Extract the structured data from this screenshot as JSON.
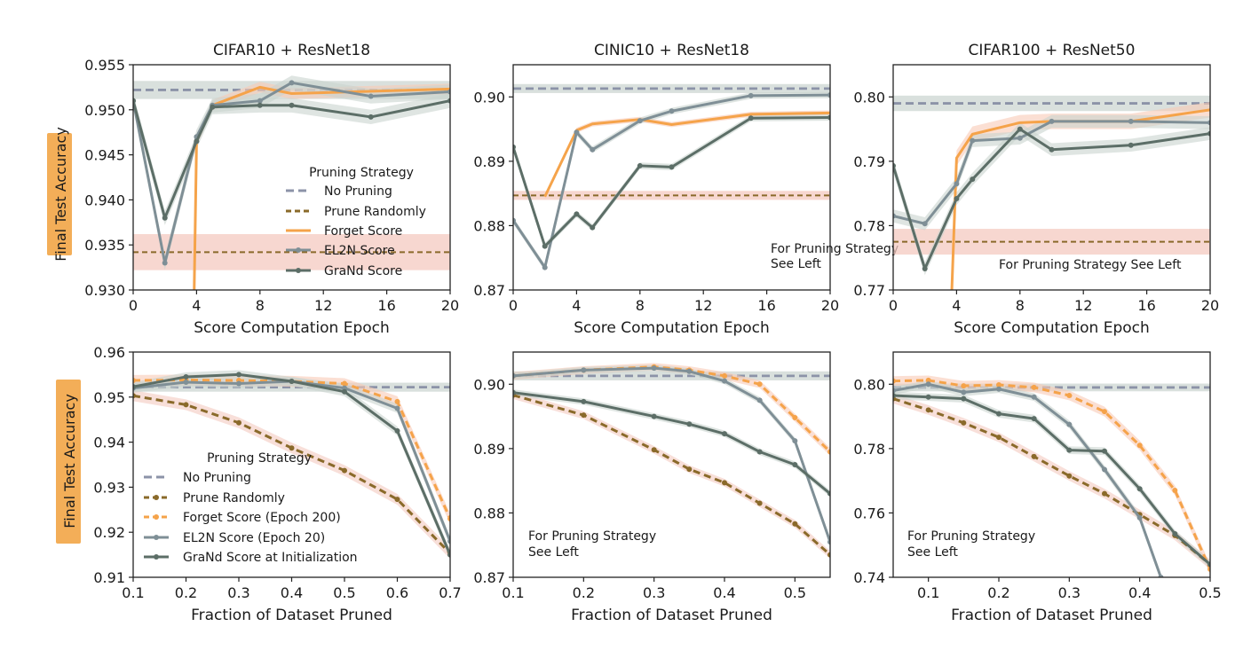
{
  "colors": {
    "no_pruning": "#8c93a8",
    "prune_randomly_line": "#8a6a2a",
    "prune_randomly_band": "#f4c9c0",
    "forget": "#f5a34a",
    "el2n": "#7f8f96",
    "grand": "#5c6e67",
    "band_gray": "#c9d3cf",
    "ylabel_bg": "#f3ae58"
  },
  "ylabel_text": "Final Test Accuracy",
  "legend_top": {
    "title": "Pruning Strategy",
    "entries": [
      "No Pruning",
      "Prune Randomly",
      "Forget Score",
      "EL2N Score",
      "GraNd Score"
    ]
  },
  "legend_bottom": {
    "title": "Pruning Strategy",
    "entries": [
      "No Pruning",
      "Prune Randomly",
      "Forget Score (Epoch 200)",
      "EL2N Score (Epoch 20)",
      "GraNd Score at Initialization"
    ]
  },
  "chart_data": [
    {
      "type": "line",
      "title": "CIFAR10 + ResNet18",
      "xlabel": "Score Computation Epoch",
      "ylabel": "Final Test Accuracy",
      "xlim": [
        0,
        20
      ],
      "ylim": [
        0.93,
        0.955
      ],
      "xticks": [
        "0",
        "4",
        "8",
        "12",
        "16",
        "20"
      ],
      "yticks": [
        "0.930",
        "0.935",
        "0.940",
        "0.945",
        "0.950",
        "0.955"
      ],
      "hlines": [
        {
          "name": "No Pruning",
          "y": 0.9522,
          "band": [
            0.9512,
            0.9532
          ]
        },
        {
          "name": "Prune Randomly",
          "y": 0.9342,
          "band": [
            0.9322,
            0.9362
          ]
        }
      ],
      "series": [
        {
          "name": "Forget Score",
          "x": [
            3.85,
            4,
            5,
            8,
            10,
            20
          ],
          "y": [
            0.93,
            0.9465,
            0.9505,
            0.9525,
            0.9518,
            0.9523
          ],
          "band": 0.0006
        },
        {
          "name": "EL2N Score",
          "x": [
            0,
            2,
            4,
            5,
            8,
            10,
            15,
            20
          ],
          "y": [
            0.951,
            0.933,
            0.947,
            0.9505,
            0.951,
            0.953,
            0.9515,
            0.952
          ],
          "band": 0.0008
        },
        {
          "name": "GraNd Score",
          "x": [
            0,
            2,
            4,
            5,
            8,
            10,
            15,
            20
          ],
          "y": [
            0.951,
            0.938,
            0.9465,
            0.9503,
            0.9505,
            0.9505,
            0.9492,
            0.951
          ],
          "band": 0.0008
        }
      ]
    },
    {
      "type": "line",
      "title": "CINIC10 + ResNet18",
      "xlabel": "Score Computation Epoch",
      "xlim": [
        0,
        20
      ],
      "ylim": [
        0.87,
        0.905
      ],
      "xticks": [
        "0",
        "4",
        "8",
        "12",
        "16",
        "20"
      ],
      "yticks": [
        "0.87",
        "0.88",
        "0.89",
        "0.90"
      ],
      "annotation": [
        "For Pruning Strategy",
        "See Left"
      ],
      "hlines": [
        {
          "name": "No Pruning",
          "y": 0.9013,
          "band": [
            0.9006,
            0.902
          ]
        },
        {
          "name": "Prune Randomly",
          "y": 0.8847,
          "band": [
            0.884,
            0.8854
          ]
        }
      ],
      "series": [
        {
          "name": "Forget Score",
          "x": [
            2,
            4,
            5,
            8,
            10,
            15,
            20
          ],
          "y": [
            0.8845,
            0.8948,
            0.8958,
            0.8965,
            0.8957,
            0.8973,
            0.8975
          ],
          "band": 0.0004
        },
        {
          "name": "EL2N Score",
          "x": [
            0,
            2,
            4,
            5,
            8,
            10,
            15,
            20
          ],
          "y": [
            0.8808,
            0.8735,
            0.8945,
            0.8918,
            0.8963,
            0.8978,
            0.9002,
            0.9003
          ],
          "band": 0.0005
        },
        {
          "name": "GraNd Score",
          "x": [
            0,
            2,
            4,
            5,
            8,
            10,
            15,
            20
          ],
          "y": [
            0.8922,
            0.8768,
            0.8818,
            0.8797,
            0.8893,
            0.8891,
            0.8967,
            0.8968
          ],
          "band": 0.0005
        }
      ]
    },
    {
      "type": "line",
      "title": "CIFAR100 + ResNet50",
      "xlabel": "Score Computation Epoch",
      "xlim": [
        0,
        20
      ],
      "ylim": [
        0.77,
        0.805
      ],
      "xticks": [
        "0",
        "4",
        "8",
        "12",
        "16",
        "20"
      ],
      "yticks": [
        "0.77",
        "0.78",
        "0.79",
        "0.80"
      ],
      "annotation": [
        "For Pruning Strategy See Left"
      ],
      "hlines": [
        {
          "name": "No Pruning",
          "y": 0.799,
          "band": [
            0.7978,
            0.8002
          ]
        },
        {
          "name": "Prune Randomly",
          "y": 0.7775,
          "band": [
            0.7755,
            0.7795
          ]
        }
      ],
      "series": [
        {
          "name": "Forget Score",
          "x": [
            3.7,
            4,
            5,
            8,
            10,
            15,
            20
          ],
          "y": [
            0.77,
            0.7905,
            0.7942,
            0.796,
            0.7962,
            0.7962,
            0.798
          ],
          "band": 0.0012
        },
        {
          "name": "EL2N Score",
          "x": [
            0,
            2,
            4,
            5,
            8,
            10,
            15,
            20
          ],
          "y": [
            0.7815,
            0.7803,
            0.7865,
            0.7932,
            0.7936,
            0.7962,
            0.7962,
            0.796
          ],
          "band": 0.001
        },
        {
          "name": "GraNd Score",
          "x": [
            0,
            2,
            4,
            5,
            8,
            10,
            15,
            20
          ],
          "y": [
            0.7893,
            0.7733,
            0.7842,
            0.7872,
            0.795,
            0.7918,
            0.7925,
            0.7943
          ],
          "band": 0.001
        }
      ]
    },
    {
      "type": "line",
      "title": "",
      "xlabel": "Fraction of Dataset Pruned",
      "ylabel": "Final Test Accuracy",
      "xlim": [
        0.1,
        0.7
      ],
      "ylim": [
        0.91,
        0.96
      ],
      "xticks": [
        "0.1",
        "0.2",
        "0.3",
        "0.4",
        "0.5",
        "0.6",
        "0.7"
      ],
      "yticks": [
        "0.91",
        "0.92",
        "0.93",
        "0.94",
        "0.95",
        "0.96"
      ],
      "hlines": [
        {
          "name": "No Pruning",
          "y": 0.9522,
          "band": [
            0.9512,
            0.9532
          ]
        }
      ],
      "series": [
        {
          "name": "Prune Randomly",
          "x": [
            0.1,
            0.2,
            0.3,
            0.4,
            0.5,
            0.6,
            0.7
          ],
          "y": [
            0.9503,
            0.9483,
            0.9443,
            0.9387,
            0.9337,
            0.9273,
            0.9153
          ],
          "band": 0.0012,
          "dashed": true
        },
        {
          "name": "Forget Score (Epoch 200)",
          "x": [
            0.1,
            0.2,
            0.3,
            0.4,
            0.5,
            0.6,
            0.7
          ],
          "y": [
            0.9537,
            0.9538,
            0.9537,
            0.9535,
            0.953,
            0.949,
            0.923
          ],
          "band": 0.0012,
          "dashed": true
        },
        {
          "name": "EL2N Score (Epoch 20)",
          "x": [
            0.1,
            0.2,
            0.3,
            0.4,
            0.5,
            0.6,
            0.7
          ],
          "y": [
            0.952,
            0.9533,
            0.953,
            0.9535,
            0.952,
            0.9475,
            0.918
          ],
          "band": 0.001
        },
        {
          "name": "GraNd Score at Initialization",
          "x": [
            0.1,
            0.2,
            0.3,
            0.4,
            0.5,
            0.6,
            0.7
          ],
          "y": [
            0.9523,
            0.9545,
            0.955,
            0.9535,
            0.9512,
            0.9425,
            0.915
          ],
          "band": 0.001
        }
      ]
    },
    {
      "type": "line",
      "title": "",
      "xlabel": "Fraction of Dataset Pruned",
      "xlim": [
        0.1,
        0.55
      ],
      "ylim": [
        0.87,
        0.905
      ],
      "xticks": [
        "0.1",
        "0.2",
        "0.3",
        "0.4",
        "0.5"
      ],
      "yticks": [
        "0.87",
        "0.88",
        "0.89",
        "0.90"
      ],
      "annotation": [
        "For Pruning Strategy",
        "See Left"
      ],
      "hlines": [
        {
          "name": "No Pruning",
          "y": 0.9013,
          "band": [
            0.9006,
            0.902
          ]
        }
      ],
      "series": [
        {
          "name": "Prune Randomly",
          "x": [
            0.1,
            0.2,
            0.3,
            0.35,
            0.4,
            0.45,
            0.5,
            0.55
          ],
          "y": [
            0.8983,
            0.8952,
            0.8898,
            0.8868,
            0.8847,
            0.8815,
            0.8783,
            0.8735
          ],
          "band": 0.0006,
          "dashed": true
        },
        {
          "name": "Forget Score (Epoch 200)",
          "x": [
            0.1,
            0.2,
            0.3,
            0.35,
            0.4,
            0.45,
            0.5,
            0.55
          ],
          "y": [
            0.9013,
            0.9022,
            0.9027,
            0.9022,
            0.9013,
            0.9,
            0.8948,
            0.8895
          ],
          "band": 0.0006,
          "dashed": true
        },
        {
          "name": "EL2N Score (Epoch 20)",
          "x": [
            0.1,
            0.2,
            0.3,
            0.35,
            0.4,
            0.45,
            0.5,
            0.55
          ],
          "y": [
            0.9013,
            0.9022,
            0.9025,
            0.902,
            0.9005,
            0.8975,
            0.8912,
            0.8755
          ],
          "band": 0.0005
        },
        {
          "name": "GraNd Score at Initialization",
          "x": [
            0.1,
            0.2,
            0.3,
            0.35,
            0.4,
            0.45,
            0.5,
            0.55
          ],
          "y": [
            0.8987,
            0.8973,
            0.895,
            0.8938,
            0.8923,
            0.8895,
            0.8875,
            0.883
          ],
          "band": 0.0005
        }
      ]
    },
    {
      "type": "line",
      "title": "",
      "xlabel": "Fraction of Dataset Pruned",
      "xlim": [
        0.05,
        0.5
      ],
      "ylim": [
        0.74,
        0.81
      ],
      "xticks": [
        "0.1",
        "0.2",
        "0.3",
        "0.4",
        "0.5"
      ],
      "yticks": [
        "0.74",
        "0.76",
        "0.78",
        "0.80"
      ],
      "annotation": [
        "For Pruning Strategy",
        "See Left"
      ],
      "hlines": [
        {
          "name": "No Pruning",
          "y": 0.799,
          "band": [
            0.7978,
            0.8002
          ]
        }
      ],
      "series": [
        {
          "name": "Prune Randomly",
          "x": [
            0.05,
            0.1,
            0.15,
            0.2,
            0.25,
            0.3,
            0.35,
            0.4,
            0.45,
            0.5
          ],
          "y": [
            0.7955,
            0.792,
            0.788,
            0.7835,
            0.7775,
            0.7715,
            0.766,
            0.7595,
            0.753,
            0.744
          ],
          "band": 0.0015,
          "dashed": true
        },
        {
          "name": "Forget Score (Epoch 200)",
          "x": [
            0.05,
            0.1,
            0.15,
            0.2,
            0.25,
            0.3,
            0.35,
            0.4,
            0.45,
            0.5
          ],
          "y": [
            0.801,
            0.8012,
            0.7995,
            0.7998,
            0.799,
            0.7965,
            0.7915,
            0.781,
            0.767,
            0.7425
          ],
          "band": 0.0015,
          "dashed": true
        },
        {
          "name": "EL2N Score (Epoch 20)",
          "x": [
            0.05,
            0.1,
            0.15,
            0.2,
            0.25,
            0.3,
            0.35,
            0.4,
            0.43
          ],
          "y": [
            0.798,
            0.8,
            0.7975,
            0.7985,
            0.796,
            0.7875,
            0.7735,
            0.7585,
            0.74
          ],
          "band": 0.0012
        },
        {
          "name": "GraNd Score at Initialization",
          "x": [
            0.05,
            0.1,
            0.15,
            0.2,
            0.25,
            0.3,
            0.35,
            0.4,
            0.45,
            0.5
          ],
          "y": [
            0.7965,
            0.796,
            0.7955,
            0.7908,
            0.7893,
            0.7795,
            0.7792,
            0.7675,
            0.7535,
            0.744
          ],
          "band": 0.0012
        }
      ]
    }
  ]
}
